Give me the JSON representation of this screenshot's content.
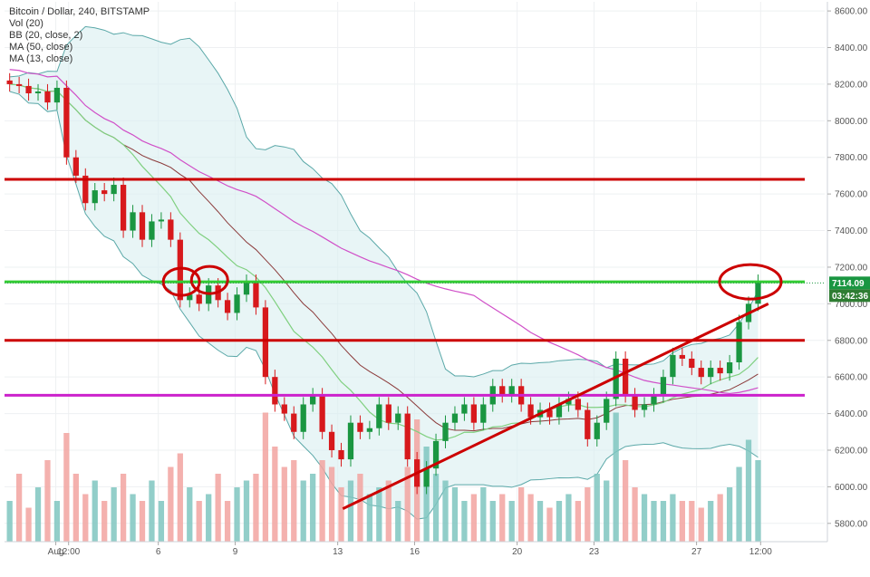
{
  "legend": {
    "title": "Bitcoin / Dollar, 240, BITSTAMP",
    "vol": "Vol (20)",
    "bb": "BB (20, close, 2)",
    "ma50": "MA (50, close)",
    "ma13": "MA (13, close)"
  },
  "colors": {
    "up": "#1a9641",
    "down": "#d7191c",
    "vol_up": "#7fc6c0",
    "vol_down": "#f2a3a0",
    "bb_fill": "#d9eef0",
    "bb_line": "#5aa8a8",
    "ma50": "#d050c8",
    "ma13": "#80d080",
    "bb_mid": "#8b3a3a",
    "resistance": "#cc0000",
    "green_line": "#33cc33",
    "magenta_line": "#cc22cc",
    "price_label": "#1a9641",
    "time_label": "#2e7d32"
  },
  "price_label": "7114.09",
  "time_label": "03:42:36",
  "chart_data": {
    "type": "candlestick",
    "title": "Bitcoin / Dollar, 240, BITSTAMP",
    "ylim": [
      5700,
      8650
    ],
    "y_ticks": [
      5800,
      6000,
      6200,
      6400,
      6600,
      6800,
      7000,
      7200,
      7400,
      7600,
      7800,
      8000,
      8200,
      8400,
      8600
    ],
    "y_tick_labels": [
      "5800.00",
      "6000.00",
      "6200.00",
      "6400.00",
      "6600.00",
      "6800.00",
      "7000.00",
      "7200.00",
      "7400.00",
      "7600.00",
      "7800.00",
      "8000.00",
      "8200.00",
      "8400.00",
      "8600.00"
    ],
    "x_ticks": [
      "Aug",
      "12:00",
      "6",
      "9",
      "13",
      "16",
      "20",
      "23",
      "27",
      "12:00"
    ],
    "x_tick_day_positions": [
      2,
      2.5,
      6,
      9,
      13,
      16,
      20,
      23,
      27,
      29.5
    ],
    "x_range_days": [
      0,
      32
    ],
    "candles_close": [
      8200,
      8190,
      8150,
      8160,
      8100,
      8180,
      7800,
      7700,
      7550,
      7620,
      7600,
      7650,
      7400,
      7500,
      7350,
      7450,
      7460,
      7350,
      7020,
      7050,
      7000,
      7100,
      7020,
      6950,
      7050,
      7120,
      6980,
      6600,
      6450,
      6400,
      6300,
      6450,
      6500,
      6300,
      6200,
      6150,
      6350,
      6300,
      6320,
      6450,
      6350,
      6400,
      6150,
      6000,
      6100,
      6250,
      6350,
      6400,
      6450,
      6350,
      6450,
      6550,
      6500,
      6550,
      6450,
      6380,
      6420,
      6380,
      6450,
      6480,
      6420,
      6260,
      6350,
      6480,
      6700,
      6500,
      6420,
      6450,
      6500,
      6600,
      6720,
      6700,
      6650,
      6600,
      6650,
      6620,
      6680,
      6900,
      7000,
      7120
    ],
    "volume_rel": [
      0.3,
      0.5,
      0.25,
      0.4,
      0.6,
      0.3,
      0.8,
      0.5,
      0.35,
      0.45,
      0.3,
      0.4,
      0.5,
      0.35,
      0.3,
      0.45,
      0.3,
      0.55,
      0.65,
      0.4,
      0.3,
      0.35,
      0.5,
      0.3,
      0.4,
      0.45,
      0.5,
      0.95,
      0.7,
      0.55,
      0.6,
      0.45,
      0.5,
      0.6,
      0.55,
      0.4,
      0.45,
      0.5,
      0.35,
      0.4,
      0.45,
      0.3,
      0.55,
      0.9,
      0.7,
      0.5,
      0.45,
      0.4,
      0.3,
      0.35,
      0.4,
      0.3,
      0.35,
      0.3,
      0.4,
      0.35,
      0.3,
      0.25,
      0.3,
      0.35,
      0.3,
      0.4,
      0.5,
      0.45,
      0.95,
      0.6,
      0.4,
      0.35,
      0.3,
      0.3,
      0.35,
      0.3,
      0.3,
      0.25,
      0.3,
      0.35,
      0.4,
      0.55,
      0.75,
      0.6
    ],
    "hlines": [
      {
        "price": 7680,
        "color": "#cc0000"
      },
      {
        "price": 7120,
        "color": "#33cc33"
      },
      {
        "price": 6800,
        "color": "#cc0000"
      },
      {
        "price": 6500,
        "color": "#cc22cc"
      }
    ],
    "trendline": {
      "from": [
        13.2,
        5880
      ],
      "to": [
        29.8,
        7000
      ]
    },
    "ellipses": [
      {
        "day": 6.9,
        "price": 7120
      },
      {
        "day": 8.0,
        "price": 7130
      },
      {
        "day": 29.1,
        "price": 7120
      }
    ]
  }
}
